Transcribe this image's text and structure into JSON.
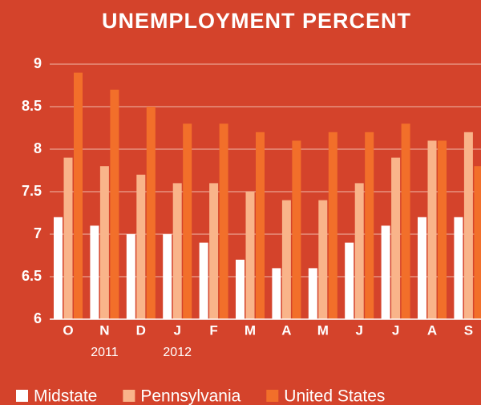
{
  "chart_data": {
    "type": "bar",
    "title": "UNEMPLOYMENT PERCENT",
    "categories": [
      "O",
      "N",
      "D",
      "J",
      "F",
      "M",
      "A",
      "M",
      "J",
      "J",
      "A",
      "S"
    ],
    "x_annotations": [
      {
        "label": "2011",
        "at": "N"
      },
      {
        "label": "2012",
        "at": "J"
      }
    ],
    "series": [
      {
        "name": "Midstate",
        "color": "#ffffff",
        "values": [
          7.2,
          7.1,
          7.0,
          7.0,
          6.9,
          6.7,
          6.6,
          6.6,
          6.9,
          7.1,
          7.2,
          7.2
        ]
      },
      {
        "name": "Pennsylvania",
        "color": "#f9b48a",
        "values": [
          7.9,
          7.8,
          7.7,
          7.6,
          7.6,
          7.5,
          7.4,
          7.4,
          7.6,
          7.9,
          8.1,
          8.2
        ]
      },
      {
        "name": "United States",
        "color": "#f26f2a",
        "values": [
          8.9,
          8.7,
          8.5,
          8.3,
          8.3,
          8.2,
          8.1,
          8.2,
          8.2,
          8.3,
          8.1,
          7.8
        ]
      }
    ],
    "ylim": [
      6,
      9
    ],
    "yticks": [
      6,
      6.5,
      7,
      7.5,
      8,
      8.5,
      9
    ],
    "grid": true,
    "legend": "bottom"
  }
}
